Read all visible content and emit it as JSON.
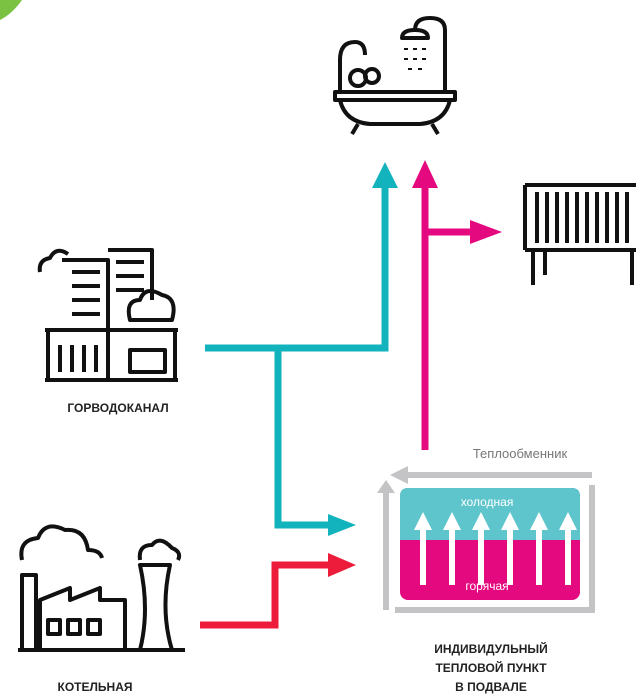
{
  "labels": {
    "vodokanal": "ГОРВОДОКАНАЛ",
    "boiler": "КОТЕЛЬНАЯ",
    "exchanger": "Теплообменник",
    "cold": "холодная",
    "hot": "горячая",
    "itp": [
      "ИНДИВИДУЛЬНЫЙ",
      "ТЕПЛОВОЙ ПУНКТ",
      "В ПОДВАЛЕ"
    ]
  }
}
